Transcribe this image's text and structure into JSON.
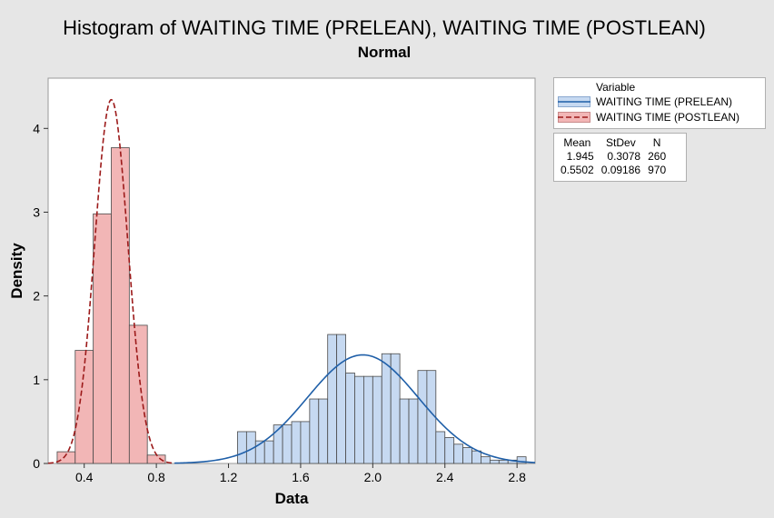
{
  "chart_data": {
    "type": "histogram",
    "title": "Histogram of WAITING TIME (PRELEAN), WAITING TIME (POSTLEAN)",
    "subtitle": "Normal",
    "xlabel": "Data",
    "ylabel": "Density",
    "xlim": [
      0.2,
      2.9
    ],
    "ylim": [
      0,
      4.6
    ],
    "xticks": [
      0.4,
      0.8,
      1.2,
      1.6,
      2.0,
      2.4,
      2.8
    ],
    "xtick_labels": [
      "0.4",
      "0.8",
      "1.2",
      "1.6",
      "2.0",
      "2.4",
      "2.8"
    ],
    "yticks": [
      0,
      1,
      2,
      3,
      4
    ],
    "ytick_labels": [
      "0",
      "1",
      "2",
      "3",
      "4"
    ],
    "legend_title": "Variable",
    "series": [
      {
        "name": "WAITING TIME (PRELEAN)",
        "fill": "#c6d9f1",
        "edge": "#4a4a4a",
        "curve_color": "#1f5fa8",
        "curve_style": "solid",
        "mean": 1.945,
        "stdev": 0.3078,
        "n": 260,
        "bin_width": 0.05,
        "bins": [
          {
            "x0": 1.25,
            "density": 0.38
          },
          {
            "x0": 1.3,
            "density": 0.38
          },
          {
            "x0": 1.35,
            "density": 0.27
          },
          {
            "x0": 1.4,
            "density": 0.27
          },
          {
            "x0": 1.45,
            "density": 0.46
          },
          {
            "x0": 1.5,
            "density": 0.46
          },
          {
            "x0": 1.55,
            "density": 0.5
          },
          {
            "x0": 1.6,
            "density": 0.5
          },
          {
            "x0": 1.65,
            "density": 0.77
          },
          {
            "x0": 1.7,
            "density": 0.77
          },
          {
            "x0": 1.75,
            "density": 1.54
          },
          {
            "x0": 1.8,
            "density": 1.54
          },
          {
            "x0": 1.85,
            "density": 1.08
          },
          {
            "x0": 1.9,
            "density": 1.04
          },
          {
            "x0": 1.95,
            "density": 1.04
          },
          {
            "x0": 2.0,
            "density": 1.04
          },
          {
            "x0": 2.05,
            "density": 1.31
          },
          {
            "x0": 2.1,
            "density": 1.31
          },
          {
            "x0": 2.15,
            "density": 0.77
          },
          {
            "x0": 2.2,
            "density": 0.77
          },
          {
            "x0": 2.25,
            "density": 1.11
          },
          {
            "x0": 2.3,
            "density": 1.11
          },
          {
            "x0": 2.35,
            "density": 0.38
          },
          {
            "x0": 2.4,
            "density": 0.31
          },
          {
            "x0": 2.45,
            "density": 0.23
          },
          {
            "x0": 2.5,
            "density": 0.19
          },
          {
            "x0": 2.55,
            "density": 0.15
          },
          {
            "x0": 2.6,
            "density": 0.08
          },
          {
            "x0": 2.65,
            "density": 0.04
          },
          {
            "x0": 2.7,
            "density": 0.04
          },
          {
            "x0": 2.75,
            "density": 0.04
          },
          {
            "x0": 2.8,
            "density": 0.08
          }
        ]
      },
      {
        "name": "WAITING TIME (POSTLEAN)",
        "fill": "#f2b6b6",
        "edge": "#4a4a4a",
        "curve_color": "#9c1a1a",
        "curve_style": "dashed",
        "mean": 0.5502,
        "stdev": 0.09186,
        "n": 970,
        "bin_width": 0.1,
        "bins": [
          {
            "x0": 0.25,
            "density": 0.14
          },
          {
            "x0": 0.35,
            "density": 1.35
          },
          {
            "x0": 0.45,
            "density": 2.98
          },
          {
            "x0": 0.55,
            "density": 3.77
          },
          {
            "x0": 0.65,
            "density": 1.65
          },
          {
            "x0": 0.75,
            "density": 0.1
          }
        ]
      }
    ],
    "stats_table": {
      "headers": [
        "Mean",
        "StDev",
        "N"
      ],
      "rows": [
        [
          "1.945",
          "0.3078",
          "260"
        ],
        [
          "0.5502",
          "0.09186",
          "970"
        ]
      ]
    }
  }
}
